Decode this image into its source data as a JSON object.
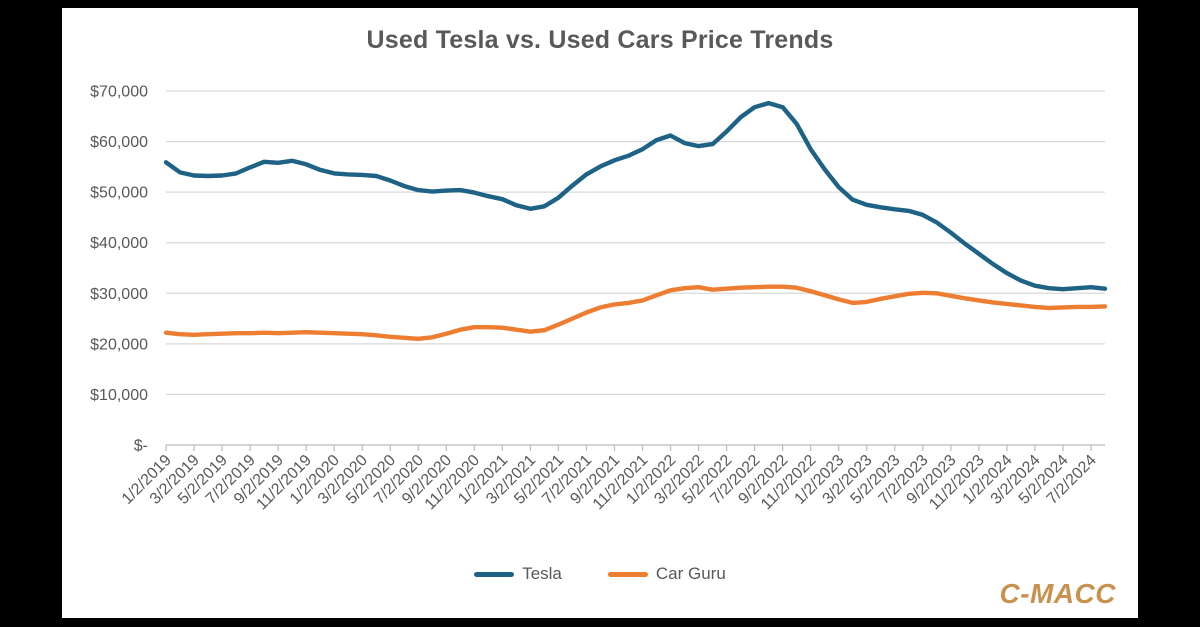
{
  "title": "Used Tesla vs. Used Cars Price Trends",
  "watermark": "C-MACC",
  "colors": {
    "background": "#000000",
    "panel": "#FFFFFF",
    "title_text": "#595959",
    "axis_text": "#595959",
    "gridline": "#D9D9D9",
    "axis_line": "#BFBFBF",
    "tesla_line": "#1E6285",
    "carguru_line": "#ED7D31",
    "watermark": "#C8924E"
  },
  "legend": [
    {
      "label": "Tesla",
      "color": "#1E6285"
    },
    {
      "label": "Car Guru",
      "color": "#ED7D31"
    }
  ],
  "chart_data": {
    "type": "line",
    "title": "Used Tesla vs. Used Cars Price Trends",
    "xlabel": "",
    "ylabel": "",
    "ylim": [
      0,
      70000
    ],
    "y_tick_step": 10000,
    "grid": true,
    "legend_position": "bottom",
    "y_tick_labels": [
      "$70,000",
      "$60,000",
      "$50,000",
      "$40,000",
      "$30,000",
      "$20,000",
      "$10,000",
      "$-"
    ],
    "x_tick_labels": [
      "1/2/2019",
      "3/2/2019",
      "5/2/2019",
      "7/2/2019",
      "9/2/2019",
      "11/2/2019",
      "1/2/2020",
      "3/2/2020",
      "5/2/2020",
      "7/2/2020",
      "9/2/2020",
      "11/2/2020",
      "1/2/2021",
      "3/2/2021",
      "5/2/2021",
      "7/2/2021",
      "9/2/2021",
      "11/2/2021",
      "1/2/2022",
      "3/2/2022",
      "5/2/2022",
      "7/2/2022",
      "9/2/2022",
      "11/2/2022",
      "1/2/2023",
      "3/2/2023",
      "5/2/2023",
      "7/2/2023",
      "9/2/2023",
      "11/2/2023",
      "1/2/2024",
      "3/2/2024",
      "5/2/2024",
      "7/2/2024"
    ],
    "x": [
      "1/2/2019",
      "2/2/2019",
      "3/2/2019",
      "4/2/2019",
      "5/2/2019",
      "6/2/2019",
      "7/2/2019",
      "8/2/2019",
      "9/2/2019",
      "10/2/2019",
      "11/2/2019",
      "12/2/2019",
      "1/2/2020",
      "2/2/2020",
      "3/2/2020",
      "4/2/2020",
      "5/2/2020",
      "6/2/2020",
      "7/2/2020",
      "8/2/2020",
      "9/2/2020",
      "10/2/2020",
      "11/2/2020",
      "12/2/2020",
      "1/2/2021",
      "2/2/2021",
      "3/2/2021",
      "4/2/2021",
      "5/2/2021",
      "6/2/2021",
      "7/2/2021",
      "8/2/2021",
      "9/2/2021",
      "10/2/2021",
      "11/2/2021",
      "12/2/2021",
      "1/2/2022",
      "2/2/2022",
      "3/2/2022",
      "4/2/2022",
      "5/2/2022",
      "6/2/2022",
      "7/2/2022",
      "8/2/2022",
      "9/2/2022",
      "10/2/2022",
      "11/2/2022",
      "12/2/2022",
      "1/2/2023",
      "2/2/2023",
      "3/2/2023",
      "4/2/2023",
      "5/2/2023",
      "6/2/2023",
      "7/2/2023",
      "8/2/2023",
      "9/2/2023",
      "10/2/2023",
      "11/2/2023",
      "12/2/2023",
      "1/2/2024",
      "2/2/2024",
      "3/2/2024",
      "4/2/2024",
      "5/2/2024",
      "6/2/2024",
      "7/2/2024",
      "8/2/2024"
    ],
    "series": [
      {
        "name": "Tesla",
        "color": "#1E6285",
        "values": [
          55900,
          53900,
          53300,
          53200,
          53300,
          53700,
          54900,
          56000,
          55800,
          56200,
          55500,
          54400,
          53700,
          53500,
          53400,
          53200,
          52300,
          51200,
          50400,
          50100,
          50300,
          50400,
          49900,
          49200,
          48600,
          47400,
          46700,
          47200,
          48900,
          51300,
          53500,
          55100,
          56300,
          57200,
          58500,
          60300,
          61200,
          59700,
          59100,
          59500,
          62000,
          64800,
          66800,
          67600,
          66800,
          63500,
          58500,
          54500,
          51000,
          48500,
          47500,
          47000,
          46600,
          46300,
          45500,
          44000,
          42000,
          39800,
          37800,
          35800,
          34000,
          32500,
          31500,
          31000,
          30800,
          31000,
          31200,
          30900
        ]
      },
      {
        "name": "Car Guru",
        "color": "#ED7D31",
        "values": [
          22200,
          21900,
          21800,
          21900,
          22000,
          22100,
          22100,
          22200,
          22100,
          22200,
          22300,
          22200,
          22100,
          22000,
          21900,
          21700,
          21400,
          21200,
          21000,
          21300,
          22000,
          22800,
          23300,
          23300,
          23200,
          22800,
          22400,
          22700,
          23800,
          25000,
          26200,
          27200,
          27800,
          28100,
          28600,
          29600,
          30600,
          31000,
          31200,
          30700,
          30900,
          31100,
          31200,
          31300,
          31300,
          31100,
          30400,
          29600,
          28800,
          28100,
          28300,
          28900,
          29400,
          29900,
          30100,
          30000,
          29500,
          29000,
          28600,
          28200,
          27900,
          27600,
          27300,
          27100,
          27200,
          27300,
          27300,
          27400
        ]
      }
    ]
  }
}
